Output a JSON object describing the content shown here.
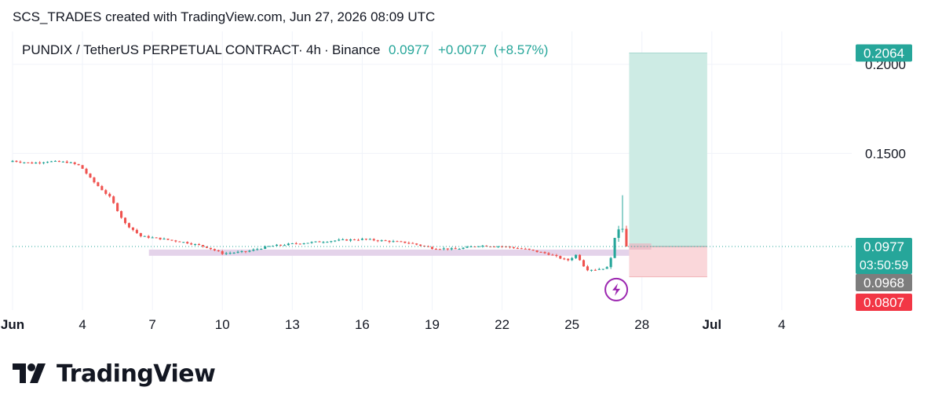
{
  "caption": "SCS_TRADES created with TradingView.com, Jun 27, 2026 08:09 UTC",
  "brand": {
    "name": "TradingView",
    "logo_icon": "tradingview-logo-icon"
  },
  "colors": {
    "up": "#26a69a",
    "down": "#ef5350",
    "profit_zone": "#cdebe4",
    "loss_zone": "#fad7da",
    "support_zone": "#e4d3ea",
    "grid": "#f0f3fa",
    "label_green": "#26a69a",
    "label_gray": "#7d7d7d",
    "label_red": "#f23645",
    "lightning": "#9c27b0"
  },
  "chart_data": {
    "type": "candlestick",
    "symbol": "PUNDIX / TetherUS PERPETUAL CONTRACT",
    "interval": "4h",
    "exchange": "Binance",
    "last_price": "0.0977",
    "change": "+0.0077",
    "change_pct": "(+8.57%)",
    "x_ticks": [
      "Jun",
      "4",
      "7",
      "10",
      "13",
      "16",
      "19",
      "22",
      "25",
      "28",
      "Jul",
      "4"
    ],
    "x_tick_days": [
      1,
      4,
      7,
      10,
      13,
      16,
      19,
      22,
      25,
      28,
      31,
      34
    ],
    "y_ticks": [
      "0.1500",
      "0.2000"
    ],
    "y_tick_values": [
      0.15,
      0.2
    ],
    "ylim": [
      0.062,
      0.2185
    ],
    "xlim": [
      1,
      37
    ],
    "price_line": 0.0977,
    "price_labels": [
      {
        "value": 0.2064,
        "text": "0.2064",
        "style": "green"
      },
      {
        "value": 0.0977,
        "text": "0.0977",
        "subtext": "03:50:59",
        "style": "green"
      },
      {
        "value": 0.0968,
        "text": "0.0968",
        "style": "gray"
      },
      {
        "value": 0.0807,
        "text": "0.0807",
        "style": "red"
      }
    ],
    "position": {
      "entry": 0.0977,
      "target": 0.2064,
      "stop": 0.0807,
      "start_day": 27.45,
      "end_day": 30.8,
      "entry_mark_end_day": 28.4
    },
    "support_zone": {
      "from_day": 6.85,
      "to_day": 28.4,
      "low": 0.0925,
      "high": 0.096
    },
    "event_marker": {
      "day": 26.9,
      "price": 0.0735,
      "icon": "lightning-icon"
    },
    "sampled_closes": [
      {
        "day": 1.0,
        "price": 0.1458
      },
      {
        "day": 1.8,
        "price": 0.1445
      },
      {
        "day": 2.5,
        "price": 0.1455
      },
      {
        "day": 3.4,
        "price": 0.145
      },
      {
        "day": 3.9,
        "price": 0.143
      },
      {
        "day": 4.4,
        "price": 0.135
      },
      {
        "day": 5.2,
        "price": 0.125
      },
      {
        "day": 5.8,
        "price": 0.111
      },
      {
        "day": 6.5,
        "price": 0.1035
      },
      {
        "day": 7.5,
        "price": 0.1018
      },
      {
        "day": 8.5,
        "price": 0.0998
      },
      {
        "day": 9.3,
        "price": 0.0975
      },
      {
        "day": 10.0,
        "price": 0.0938
      },
      {
        "day": 11.0,
        "price": 0.0948
      },
      {
        "day": 12.0,
        "price": 0.0978
      },
      {
        "day": 13.0,
        "price": 0.0992
      },
      {
        "day": 14.0,
        "price": 0.1002
      },
      {
        "day": 15.0,
        "price": 0.1012
      },
      {
        "day": 16.0,
        "price": 0.1018
      },
      {
        "day": 17.0,
        "price": 0.1008
      },
      {
        "day": 18.0,
        "price": 0.0998
      },
      {
        "day": 19.0,
        "price": 0.0968
      },
      {
        "day": 20.0,
        "price": 0.0962
      },
      {
        "day": 21.0,
        "price": 0.0982
      },
      {
        "day": 22.0,
        "price": 0.0978
      },
      {
        "day": 23.0,
        "price": 0.0962
      },
      {
        "day": 24.0,
        "price": 0.0935
      },
      {
        "day": 24.8,
        "price": 0.0898
      },
      {
        "day": 25.2,
        "price": 0.0932
      },
      {
        "day": 25.6,
        "price": 0.0848
      },
      {
        "day": 26.0,
        "price": 0.0848
      },
      {
        "day": 26.5,
        "price": 0.0858
      },
      {
        "day": 26.9,
        "price": 0.1035
      },
      {
        "day": 27.1,
        "price": 0.1133
      },
      {
        "day": 27.35,
        "price": 0.0977
      }
    ]
  }
}
